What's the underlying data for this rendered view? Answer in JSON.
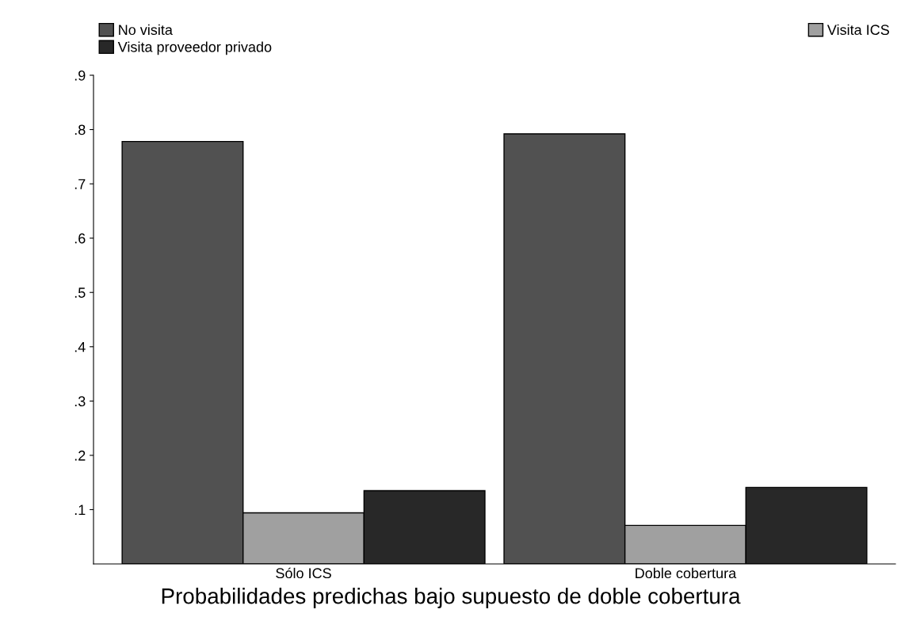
{
  "chart_data": {
    "type": "bar",
    "title": "Probabilidades predichas bajo supuesto de doble cobertura",
    "categories": [
      "Sólo ICS",
      "Doble cobertura"
    ],
    "series": [
      {
        "name": "No visita",
        "color": "#515151",
        "values": [
          0.778,
          0.792
        ]
      },
      {
        "name": "Visita ICS",
        "color": "#a0a0a0",
        "values": [
          0.094,
          0.071
        ]
      },
      {
        "name": "Visita proveedor privado",
        "color": "#282828",
        "values": [
          0.135,
          0.141
        ]
      }
    ],
    "ylim": [
      0,
      0.9
    ],
    "yticks": [
      {
        "value": 0.1,
        "label": ".1"
      },
      {
        "value": 0.2,
        "label": ".2"
      },
      {
        "value": 0.3,
        "label": ".3"
      },
      {
        "value": 0.4,
        "label": ".4"
      },
      {
        "value": 0.5,
        "label": ".5"
      },
      {
        "value": 0.6,
        "label": ".6"
      },
      {
        "value": 0.7,
        "label": ".7"
      },
      {
        "value": 0.8,
        "label": ".8"
      },
      {
        "value": 0.9,
        "label": ".9"
      }
    ],
    "grid": false,
    "legend": "top"
  }
}
